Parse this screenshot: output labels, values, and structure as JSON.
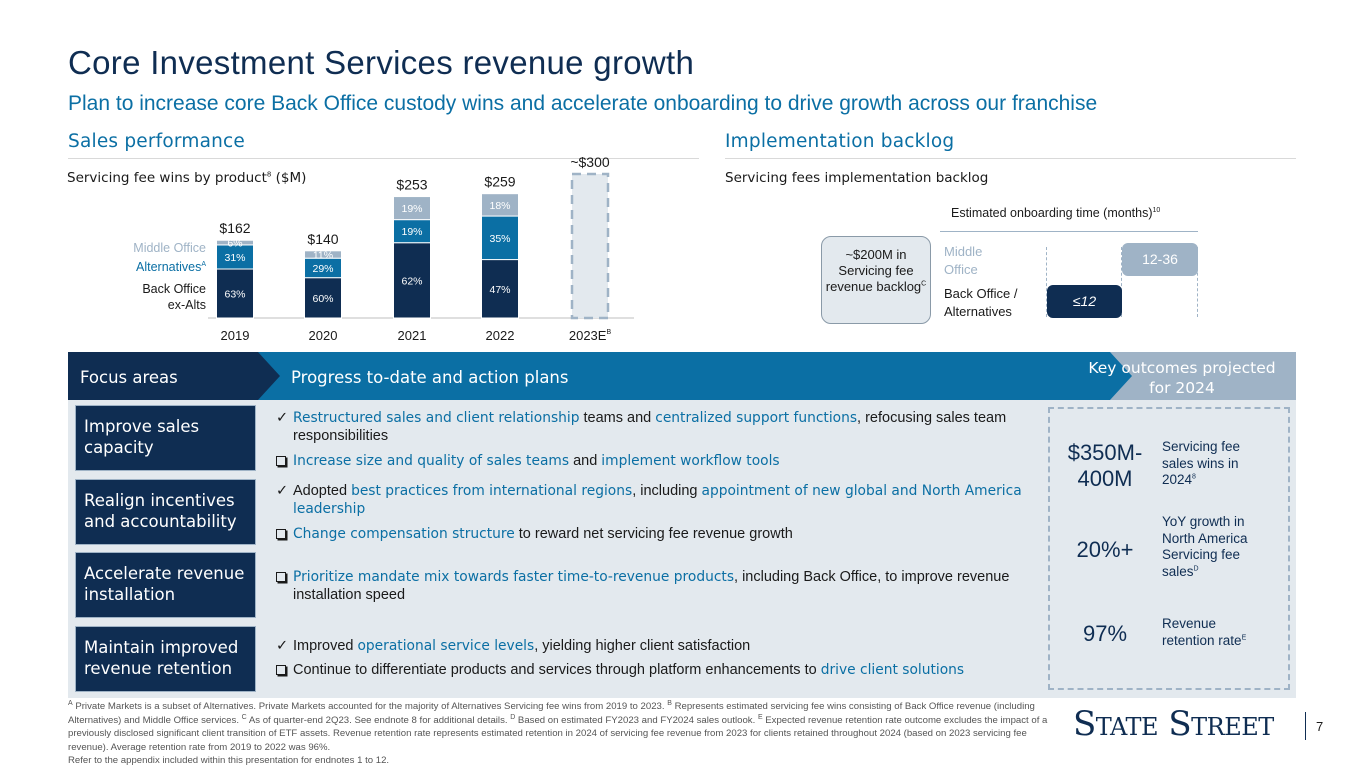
{
  "title": "Core Investment Services revenue growth",
  "subtitle": "Plan to increase core Back Office custody wins and accelerate onboarding to drive growth across our franchise",
  "sales": {
    "heading": "Sales performance",
    "chart_sub": "Servicing fee wins by product",
    "chart_sub_sup": "8",
    "chart_sub_unit": " ($M)",
    "label_mo": "Middle Office",
    "label_alt": "Alternatives",
    "label_alt_sup": "A",
    "label_bo1": "Back Office",
    "label_bo2": "ex-Alts"
  },
  "chart_data": {
    "type": "bar",
    "title": "Servicing fee wins by product ($M)",
    "categories": [
      "2019",
      "2020",
      "2021",
      "2022",
      "2023E"
    ],
    "category_sups": [
      "",
      "",
      "",
      "",
      "B"
    ],
    "totals": [
      "$162",
      "$140",
      "$253",
      "$259",
      "~$300"
    ],
    "total_values": [
      162,
      140,
      253,
      259,
      300
    ],
    "series": [
      {
        "name": "Back Office ex-Alts",
        "values": [
          63,
          60,
          62,
          47,
          null
        ],
        "labels": [
          "63%",
          "60%",
          "62%",
          "47%",
          ""
        ],
        "color": "#0f2d52"
      },
      {
        "name": "Alternatives",
        "values": [
          31,
          29,
          19,
          35,
          null
        ],
        "labels": [
          "31%",
          "29%",
          "19%",
          "35%",
          ""
        ],
        "color": "#0b6fa4"
      },
      {
        "name": "Middle Office",
        "values": [
          6,
          11,
          19,
          18,
          null
        ],
        "labels": [
          "6%",
          "11%",
          "19%",
          "18%",
          ""
        ],
        "color": "#9fb3c6"
      }
    ],
    "estimate_fill": "#e3e9ee",
    "ylim": [
      0,
      300
    ]
  },
  "impl": {
    "heading": "Implementation backlog",
    "sub": "Servicing fees implementation backlog",
    "est_label": "Estimated onboarding time (months)",
    "est_sup": "10",
    "backlog_text": "~$200M in Servicing fee revenue backlog",
    "backlog_sup": "C",
    "mo1": "Middle",
    "mo2": "Office",
    "bo1": "Back Office /",
    "bo2": "Alternatives",
    "range_mo": "12-36",
    "range_bo": "≤12"
  },
  "band": {
    "focus": "Focus areas",
    "progress": "Progress to-date and action plans",
    "outcomes": "Key outcomes projected for 2024"
  },
  "focus_areas": [
    "Improve sales capacity",
    "Realign incentives and accountability",
    "Accelerate revenue installation",
    "Maintain improved revenue retention"
  ],
  "bullets": {
    "b1_hl1": "Restructured sales and client relationship",
    "b1_t1": " teams and ",
    "b1_hl2": "centralized support functions",
    "b1_t2": ", refocusing sales team responsibilities",
    "b2_hl1": "Increase size and quality of sales teams",
    "b2_t1": " and ",
    "b2_hl2": "implement workflow tools",
    "b3_t1": "Adopted ",
    "b3_hl1": "best practices from international regions",
    "b3_t2": ", including ",
    "b3_hl2": "appointment of new global and North America leadership",
    "b4_hl1": "Change compensation structure",
    "b4_t1": " to reward net servicing fee revenue growth",
    "b5_hl1": "Prioritize mandate mix towards faster time-to-revenue products",
    "b5_t1": ", including Back Office, to improve revenue installation speed",
    "b6_t1": "Improved ",
    "b6_hl1": "operational service levels",
    "b6_t2": ", yielding higher client satisfaction",
    "b7_t1": "Continue to differentiate products and services through platform enhancements to ",
    "b7_hl1": "drive client solutions"
  },
  "outcomes": [
    {
      "value": "$350M-400M",
      "text": "Servicing fee sales wins in 2024",
      "sup": "8"
    },
    {
      "value": "20%+",
      "text": "YoY growth in North America Servicing fee sales",
      "sup": "D"
    },
    {
      "value": "97%",
      "text": "Revenue retention rate",
      "sup": "E"
    }
  ],
  "footnotes": {
    "a_mark": "A",
    "a": " Private Markets is a subset of Alternatives. Private Markets accounted for the majority of Alternatives Servicing fee wins from 2019 to 2023. ",
    "b_mark": "B",
    "b": " Represents estimated servicing fee wins consisting of Back Office revenue (including Alternatives) and Middle Office services. ",
    "c_mark": "C",
    "c": " As of quarter-end 2Q23. See endnote 8 for additional details. ",
    "d_mark": "D",
    "d": " Based on estimated FY2023 and FY2024 sales outlook. ",
    "e_mark": "E",
    "e": " Expected revenue retention rate outcome excludes the impact of a previously disclosed significant client transition of ETF assets. Revenue retention rate represents estimated retention in 2024 of servicing fee revenue from 2023 for clients retained throughout 2024 (based on 2023 servicing fee revenue). Average retention rate from 2019 to 2022 was 96%.",
    "refer": "Refer to the appendix included within this presentation for endnotes 1 to 12."
  },
  "logo": "State Street",
  "page_number": "7",
  "colors": {
    "navy": "#0f2d52",
    "teal": "#0b6fa4",
    "steel": "#9fb3c6",
    "panel": "#e3e9ee"
  }
}
